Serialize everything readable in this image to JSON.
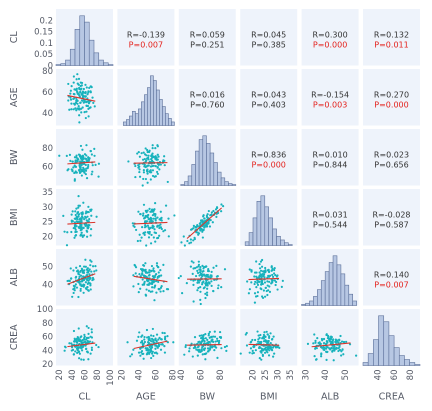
{
  "colors": {
    "scatter": "#17b2bc",
    "fit_line": "#d9342b",
    "hist_fill": "#b7c7e3",
    "hist_edge": "#5b6f99",
    "panel_bg": "#eef3fb",
    "significant_p": "#e4211c",
    "normal_text": "#333333"
  },
  "chart_data": {
    "type": "scatter",
    "title": "",
    "variables": [
      {
        "label": "CL",
        "xlim": [
          15,
          105
        ],
        "xticks": [
          "20",
          "40",
          "60",
          "80",
          "100"
        ],
        "ylim": [
          0,
          0.25
        ],
        "yticks": [
          "0",
          "0.05",
          "0.1",
          "0.15",
          "0.2"
        ]
      },
      {
        "label": "AGE",
        "xlim": [
          15,
          82
        ],
        "xticks": [
          "20",
          "40",
          "60",
          "80"
        ],
        "ylim": [
          28,
          82
        ],
        "yticks": [
          "40",
          "60",
          "80"
        ]
      },
      {
        "label": "BW",
        "xlim": [
          38,
          96
        ],
        "xticks": [
          "40",
          "60",
          "80"
        ],
        "ylim": [
          40,
          100
        ],
        "yticks": [
          "60",
          "80"
        ]
      },
      {
        "label": "BMI",
        "xlim": [
          15,
          38
        ],
        "xticks": [
          "20",
          "25",
          "30",
          "35"
        ],
        "ylim": [
          17,
          36
        ],
        "yticks": [
          "20",
          "25",
          "30",
          "35"
        ]
      },
      {
        "label": "ALB",
        "xlim": [
          28,
          57
        ],
        "xticks": [
          "30",
          "40",
          "50"
        ],
        "ylim": [
          28,
          60
        ],
        "yticks": [
          "40",
          "50"
        ]
      },
      {
        "label": "CREA",
        "xlim": [
          22,
          92
        ],
        "xticks": [
          "40",
          "60",
          "80"
        ],
        "ylim": [
          18,
          100
        ],
        "yticks": [
          "20",
          "40",
          "60",
          "80",
          "100"
        ]
      }
    ],
    "correlations": [
      {
        "row": 0,
        "col": 1,
        "r": "R=-0.139",
        "p": "P=0.007",
        "significant": true
      },
      {
        "row": 0,
        "col": 2,
        "r": "R=0.059",
        "p": "P=0.251",
        "significant": false
      },
      {
        "row": 0,
        "col": 3,
        "r": "R=0.045",
        "p": "P=0.385",
        "significant": false
      },
      {
        "row": 0,
        "col": 4,
        "r": "R=0.300",
        "p": "P=0.000",
        "significant": true
      },
      {
        "row": 0,
        "col": 5,
        "r": "R=0.132",
        "p": "P=0.011",
        "significant": true
      },
      {
        "row": 1,
        "col": 2,
        "r": "R=0.016",
        "p": "P=0.760",
        "significant": false
      },
      {
        "row": 1,
        "col": 3,
        "r": "R=0.043",
        "p": "P=0.403",
        "significant": false
      },
      {
        "row": 1,
        "col": 4,
        "r": "R=-0.154",
        "p": "P=0.003",
        "significant": true
      },
      {
        "row": 1,
        "col": 5,
        "r": "R=0.270",
        "p": "P=0.000",
        "significant": true
      },
      {
        "row": 2,
        "col": 3,
        "r": "R=0.836",
        "p": "P=0.000",
        "significant": true
      },
      {
        "row": 2,
        "col": 4,
        "r": "R=0.010",
        "p": "P=0.844",
        "significant": false
      },
      {
        "row": 2,
        "col": 5,
        "r": "R=0.023",
        "p": "P=0.656",
        "significant": false
      },
      {
        "row": 3,
        "col": 4,
        "r": "R=0.031",
        "p": "P=0.544",
        "significant": false
      },
      {
        "row": 3,
        "col": 5,
        "r": "R=-0.028",
        "p": "P=0.587",
        "significant": false
      },
      {
        "row": 4,
        "col": 5,
        "r": "R=0.140",
        "p": "P=0.007",
        "significant": true
      }
    ],
    "histograms": [
      {
        "var": "CL",
        "range": [
          15,
          105
        ],
        "counts": [
          1,
          2,
          6,
          18,
          40,
          55,
          48,
          28,
          14,
          6,
          3,
          1
        ]
      },
      {
        "var": "AGE",
        "range": [
          22,
          82
        ],
        "counts": [
          3,
          5,
          8,
          12,
          10,
          14,
          20,
          26,
          32,
          42,
          38,
          30,
          22,
          16,
          10,
          6,
          3
        ]
      },
      {
        "var": "BW",
        "range": [
          40,
          96
        ],
        "counts": [
          1,
          4,
          10,
          22,
          36,
          48,
          52,
          44,
          34,
          24,
          14,
          8,
          4,
          2,
          1
        ]
      },
      {
        "var": "BMI",
        "range": [
          17,
          36
        ],
        "counts": [
          4,
          14,
          30,
          48,
          54,
          42,
          30,
          18,
          10,
          6,
          3,
          1
        ]
      },
      {
        "var": "ALB",
        "range": [
          28,
          56
        ],
        "counts": [
          1,
          2,
          4,
          8,
          14,
          22,
          30,
          38,
          44,
          36,
          28,
          18,
          10,
          4
        ]
      },
      {
        "var": "CREA",
        "range": [
          22,
          92
        ],
        "counts": [
          3,
          12,
          26,
          50,
          44,
          30,
          18,
          10,
          6,
          3,
          1
        ]
      }
    ],
    "scatter_model": {
      "n_points": 120,
      "means": [
        55,
        54,
        64,
        24.5,
        43,
        48
      ],
      "sds": [
        10,
        9,
        8,
        2.8,
        4.5,
        9
      ]
    }
  }
}
